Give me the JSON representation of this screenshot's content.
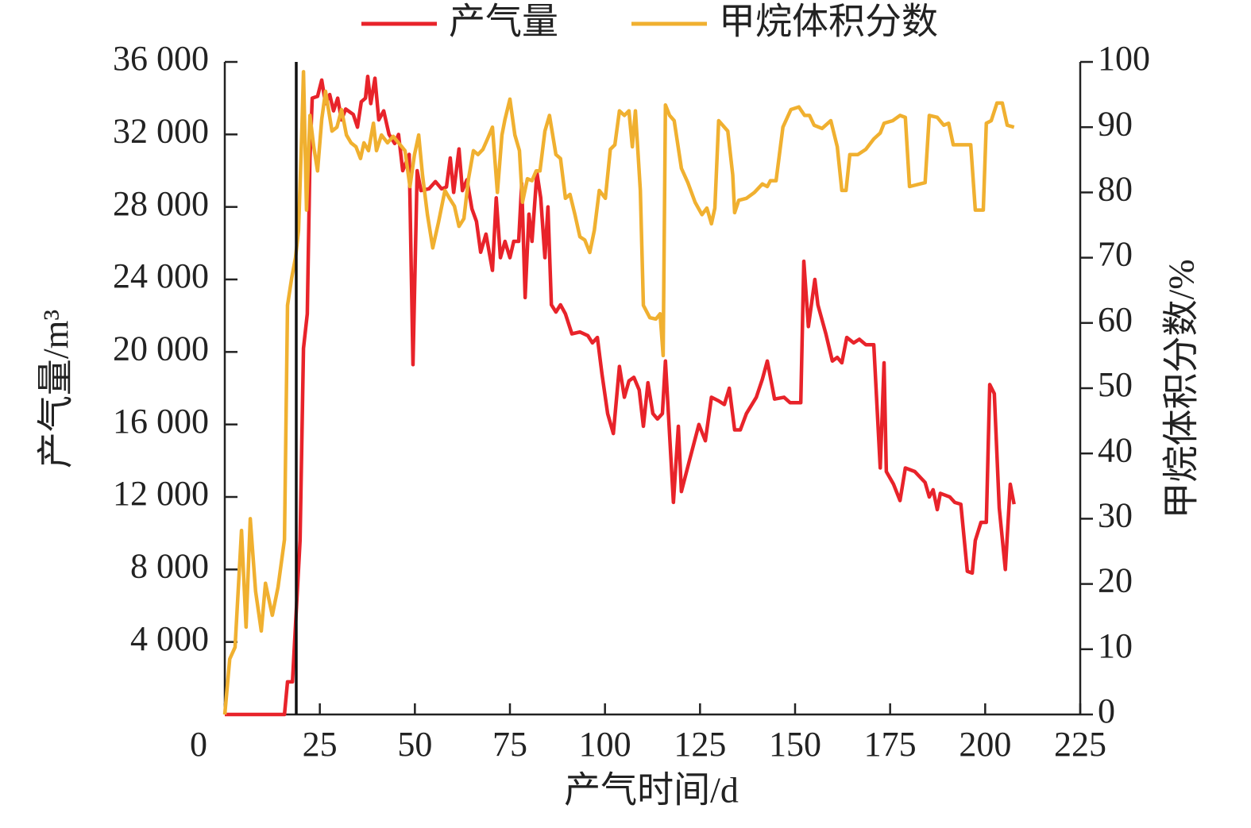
{
  "chart_data": {
    "type": "line",
    "xlabel": "产气时间/d",
    "ylabel": "产气量/m³",
    "y2label": "甲烷体积分数/%",
    "xlim": [
      0,
      225
    ],
    "xticks": [
      0,
      25,
      50,
      75,
      100,
      125,
      150,
      175,
      200,
      225
    ],
    "ylim": [
      0,
      36000
    ],
    "yticks": [
      {
        "value": 4000,
        "label": "4 000"
      },
      {
        "value": 8000,
        "label": "8 000"
      },
      {
        "value": 12000,
        "label": "12 000"
      },
      {
        "value": 16000,
        "label": "16 000"
      },
      {
        "value": 20000,
        "label": "20 000"
      },
      {
        "value": 24000,
        "label": "24 000"
      },
      {
        "value": 28000,
        "label": "28 000"
      },
      {
        "value": 32000,
        "label": "32 000"
      },
      {
        "value": 36000,
        "label": "36 000"
      }
    ],
    "y2lim": [
      0,
      100
    ],
    "y2ticks": [
      0,
      10,
      20,
      30,
      40,
      50,
      60,
      70,
      80,
      90,
      100
    ],
    "vertical_line_x": 18.8,
    "series": [
      {
        "name": "产气量",
        "color": "#e8232a",
        "axis": "y",
        "x": [
          0,
          10,
          13,
          15.7,
          16.5,
          17.8,
          19.8,
          20.7,
          21.7,
          22.4,
          23,
          24.4,
          25.5,
          26.5,
          27.6,
          28.6,
          29.7,
          30.7,
          31.8,
          33.8,
          34.9,
          35.9,
          37,
          37.6,
          38.4,
          39.5,
          40.5,
          41.8,
          43.2,
          44.7,
          45.7,
          46.8,
          48.5,
          49.5,
          50.6,
          51.6,
          53.7,
          55.4,
          57,
          58.3,
          59.3,
          60.2,
          61.6,
          62.5,
          63.7,
          65,
          66.2,
          67.3,
          68.7,
          70.4,
          71.4,
          72.5,
          73.7,
          75,
          76,
          77.3,
          78.1,
          79,
          80,
          80.8,
          82.1,
          83.1,
          84.2,
          85,
          85.9,
          87.1,
          88.3,
          89.6,
          91.3,
          93.4,
          95.5,
          96.7,
          98,
          99.2,
          100.7,
          102.2,
          103.8,
          105.1,
          106.3,
          107.6,
          109,
          110.1,
          111.3,
          112.6,
          113.8,
          115.1,
          115.9,
          118,
          119.3,
          120.1,
          122.2,
          124.7,
          126.4,
          128,
          129.9,
          131.4,
          132.7,
          134.1,
          135.6,
          137.2,
          139.8,
          141.4,
          142.7,
          144.6,
          147.1,
          148.7,
          151.5,
          152.3,
          153.5,
          155.2,
          156,
          158.1,
          159.8,
          161.1,
          162.3,
          163.6,
          165.4,
          166.9,
          168.6,
          170.7,
          172.4,
          173.4,
          174,
          175.9,
          177.6,
          179,
          181.5,
          184.2,
          185.3,
          186.3,
          187.4,
          188.2,
          190.7,
          192,
          193.6,
          195.3,
          196.6,
          197.4,
          198.9,
          200.3,
          201.2,
          202.4,
          203.7,
          205.3,
          206.6,
          207.6
        ],
        "values": [
          0,
          0,
          0,
          0,
          1800,
          1800,
          9600,
          20200,
          22100,
          30700,
          34000,
          34100,
          35000,
          33700,
          34200,
          33300,
          34000,
          32800,
          33400,
          33100,
          32400,
          33800,
          34000,
          35200,
          33700,
          35100,
          32800,
          33300,
          32000,
          31500,
          32000,
          30000,
          30900,
          19300,
          30000,
          28900,
          29000,
          29400,
          29000,
          29100,
          30700,
          28800,
          31200,
          28900,
          29500,
          27900,
          27200,
          25500,
          26500,
          24500,
          28500,
          25200,
          26100,
          25200,
          26100,
          26100,
          29300,
          23000,
          27600,
          26100,
          29900,
          28500,
          25200,
          28000,
          22600,
          22200,
          22600,
          22100,
          21000,
          21100,
          20900,
          20500,
          20800,
          18800,
          16600,
          15500,
          19200,
          17500,
          18400,
          18600,
          17900,
          15900,
          18300,
          16600,
          16300,
          16600,
          19500,
          11700,
          15900,
          12300,
          14000,
          16000,
          15100,
          17500,
          17300,
          17100,
          18000,
          15700,
          15700,
          16600,
          17500,
          18500,
          19500,
          17400,
          17500,
          17200,
          17200,
          25000,
          21400,
          24000,
          22600,
          21000,
          19500,
          19700,
          19400,
          20800,
          20500,
          20700,
          20400,
          20400,
          13600,
          19400,
          13400,
          12700,
          11800,
          13600,
          13400,
          12800,
          12000,
          12400,
          11300,
          12200,
          12000,
          11700,
          11600,
          7900,
          7800,
          9600,
          10600,
          10600,
          18200,
          17700,
          11400,
          8000,
          12700,
          11600
        ]
      },
      {
        "name": "甲烷体积分数",
        "color": "#f0b030",
        "axis": "y2",
        "x": [
          0,
          1.3,
          2.7,
          4.4,
          5.6,
          6.7,
          8.1,
          9.6,
          10.7,
          12.5,
          14,
          15.7,
          16.5,
          17.6,
          18.6,
          19.4,
          20.3,
          20.7,
          21.5,
          22.4,
          23.4,
          24.4,
          25.5,
          26.5,
          28.2,
          29.5,
          30.7,
          32,
          33.2,
          34.5,
          35.7,
          36.6,
          37.8,
          39.1,
          39.9,
          41.2,
          42.8,
          44.3,
          45.7,
          47.4,
          48.7,
          49.9,
          51,
          52,
          53.3,
          54.7,
          56.2,
          57.9,
          59.1,
          60.4,
          61.6,
          62.9,
          64.1,
          65.4,
          66.6,
          67.9,
          69.1,
          70.4,
          71.7,
          72.9,
          73.7,
          75,
          76.3,
          77.5,
          78.3,
          79.6,
          80.8,
          81.9,
          82.9,
          84.2,
          85.4,
          87.1,
          88.3,
          89.6,
          90.8,
          92.1,
          93.4,
          94.7,
          96,
          97.2,
          98.5,
          100.1,
          101.4,
          102.6,
          103.8,
          105.1,
          106.3,
          107.2,
          108,
          109.3,
          110.1,
          111.8,
          113.4,
          114.5,
          115.3,
          115.9,
          117,
          118.2,
          120.1,
          121.8,
          123.7,
          125.5,
          126.8,
          128,
          128.9,
          129.9,
          132.3,
          133.6,
          134.1,
          135.2,
          137.2,
          139.3,
          141.4,
          142.7,
          143.5,
          145,
          146.8,
          148.9,
          151,
          152.5,
          153.8,
          155,
          157.1,
          159.4,
          161.1,
          162.3,
          163.4,
          164.4,
          166.5,
          168.6,
          170.7,
          172.4,
          173.4,
          175.7,
          177.6,
          179,
          180.1,
          184.2,
          185.3,
          187.4,
          189.1,
          190.4,
          191.6,
          196.2,
          197.4,
          199.5,
          200.3,
          201.6,
          203.1,
          204.5,
          205.8,
          207.6
        ],
        "values": [
          0,
          8.5,
          10.3,
          28.2,
          13.4,
          30,
          18.9,
          12.8,
          20.1,
          15.2,
          19.5,
          26.8,
          62.7,
          66.9,
          70,
          74.2,
          90,
          98.5,
          77.3,
          91.8,
          87,
          83.3,
          91.2,
          95.5,
          89.4,
          90,
          92.7,
          88.8,
          87.6,
          87,
          85.2,
          87.6,
          86.4,
          90.6,
          86.4,
          88.8,
          87.6,
          88.6,
          87.6,
          86.4,
          80.9,
          85.8,
          88.8,
          82.7,
          76.6,
          71.5,
          75.4,
          80.3,
          79.1,
          77.9,
          74.8,
          76,
          82.1,
          86.4,
          85.8,
          86.6,
          88.2,
          90,
          80,
          88.8,
          91.2,
          94.3,
          88.8,
          86.4,
          78.5,
          82.1,
          81.8,
          83.3,
          83.3,
          89.4,
          91.8,
          85.8,
          85.2,
          79.1,
          79.7,
          76.6,
          73.2,
          72.7,
          70.8,
          74.2,
          80.3,
          79.1,
          86.6,
          87.3,
          92.5,
          91.8,
          92.5,
          87,
          92.5,
          80.3,
          62.7,
          60.8,
          60.6,
          61.4,
          55,
          93.4,
          91.8,
          91,
          83.7,
          81.5,
          78.5,
          76.6,
          77.6,
          75.2,
          77.6,
          91,
          89.4,
          82.7,
          76.9,
          78.8,
          79.1,
          80,
          81.3,
          80.9,
          81.8,
          81.8,
          90,
          92.7,
          93.1,
          91.8,
          91.8,
          90.3,
          89.8,
          91,
          87,
          80.3,
          80.3,
          85.8,
          85.8,
          86.6,
          88.2,
          89.1,
          90.6,
          91,
          91.8,
          91.5,
          80.9,
          81.5,
          91.8,
          91.5,
          90.3,
          90.6,
          87.3,
          87.3,
          77.3,
          77.3,
          90.6,
          91,
          93.7,
          93.7,
          90.3,
          90
        ]
      }
    ]
  }
}
